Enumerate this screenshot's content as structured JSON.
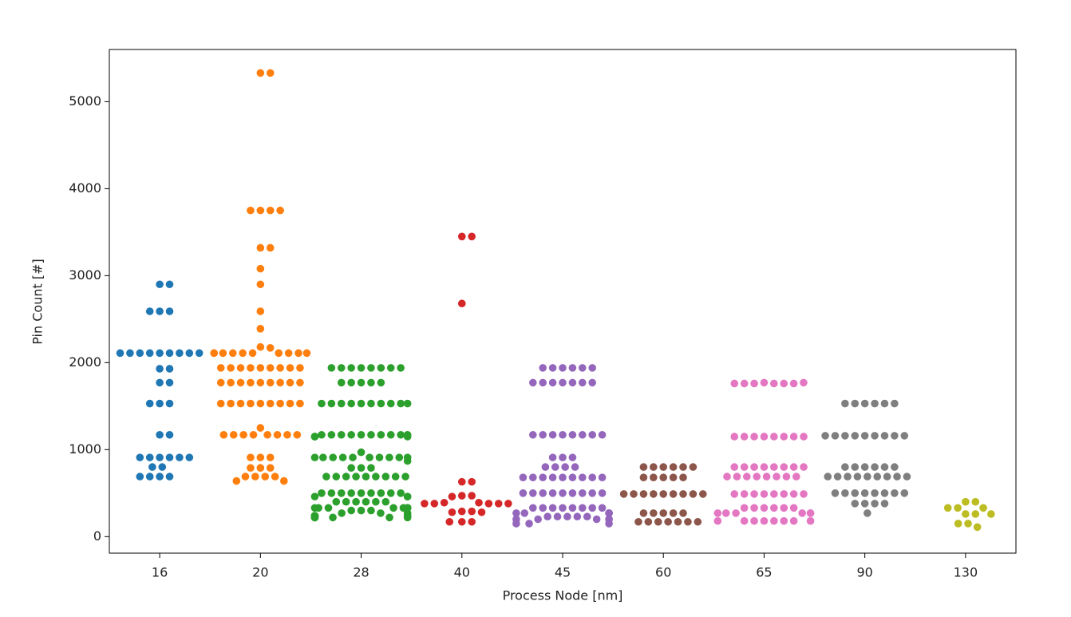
{
  "chart_data": {
    "type": "swarm",
    "x_label": "Process Node [nm]",
    "y_label": "Pin Count [#]",
    "categories": [
      "16",
      "20",
      "28",
      "40",
      "45",
      "60",
      "65",
      "90",
      "130"
    ],
    "colors": [
      "#1f77b4",
      "#ff7f0e",
      "#2ca02c",
      "#d62728",
      "#9467bd",
      "#8c564b",
      "#e377c2",
      "#7f7f7f",
      "#bcbd22"
    ],
    "values": [
      [
        2900,
        2900,
        2590,
        2590,
        2590,
        2110,
        2110,
        2110,
        2110,
        2110,
        2110,
        2110,
        2110,
        2110,
        1930,
        1930,
        1770,
        1770,
        1530,
        1530,
        1530,
        1170,
        1170,
        910,
        910,
        910,
        910,
        910,
        910,
        800,
        800,
        690,
        690,
        690,
        690
      ],
      [
        5330,
        5330,
        3750,
        3750,
        3750,
        3750,
        3320,
        3320,
        3080,
        2900,
        2590,
        2390,
        2180,
        2170,
        2110,
        2110,
        2110,
        2110,
        2110,
        2110,
        2110,
        2110,
        2110,
        2110,
        1940,
        1940,
        1940,
        1940,
        1940,
        1940,
        1940,
        1940,
        1940,
        1770,
        1770,
        1770,
        1770,
        1770,
        1770,
        1770,
        1770,
        1770,
        1530,
        1530,
        1530,
        1530,
        1530,
        1530,
        1530,
        1530,
        1530,
        1250,
        1170,
        1170,
        1170,
        1170,
        1170,
        1170,
        1170,
        1170,
        910,
        910,
        910,
        790,
        790,
        790,
        690,
        690,
        690,
        690,
        640,
        640
      ],
      [
        1940,
        1940,
        1940,
        1940,
        1940,
        1940,
        1940,
        1940,
        1770,
        1770,
        1770,
        1770,
        1770,
        1530,
        1530,
        1530,
        1530,
        1530,
        1530,
        1530,
        1530,
        1530,
        1530,
        1170,
        1170,
        1170,
        1170,
        1170,
        1170,
        1170,
        1170,
        1170,
        1170,
        1150,
        1150,
        1150,
        1150,
        970,
        910,
        910,
        910,
        910,
        910,
        910,
        910,
        910,
        910,
        910,
        870,
        790,
        790,
        790,
        690,
        690,
        690,
        690,
        690,
        690,
        690,
        690,
        690,
        500,
        500,
        500,
        500,
        500,
        500,
        500,
        500,
        500,
        460,
        460,
        460,
        400,
        400,
        400,
        400,
        400,
        400,
        330,
        330,
        330,
        330,
        330,
        330,
        330,
        330,
        330,
        300,
        300,
        300,
        270,
        270,
        270,
        240,
        240,
        240,
        240,
        220,
        220,
        220,
        220,
        220,
        220,
        220,
        220
      ],
      [
        3450,
        3450,
        2680,
        630,
        630,
        470,
        470,
        460,
        390,
        390,
        380,
        380,
        380,
        380,
        380,
        290,
        290,
        280,
        280,
        170,
        170,
        170
      ],
      [
        1940,
        1940,
        1940,
        1940,
        1940,
        1940,
        1770,
        1770,
        1770,
        1770,
        1770,
        1770,
        1770,
        1170,
        1170,
        1170,
        1170,
        1170,
        1170,
        1170,
        1170,
        910,
        910,
        910,
        800,
        800,
        800,
        800,
        680,
        680,
        680,
        680,
        680,
        680,
        680,
        680,
        680,
        500,
        500,
        500,
        500,
        500,
        500,
        500,
        500,
        500,
        330,
        330,
        330,
        330,
        330,
        330,
        330,
        330,
        270,
        270,
        270,
        270,
        270,
        270,
        230,
        230,
        230,
        230,
        230,
        200,
        200,
        200,
        200,
        200,
        150,
        150,
        150
      ],
      [
        800,
        800,
        800,
        800,
        800,
        800,
        680,
        680,
        680,
        680,
        680,
        490,
        490,
        490,
        490,
        490,
        490,
        490,
        490,
        490,
        270,
        270,
        270,
        270,
        270,
        170,
        170,
        170,
        170,
        170,
        170,
        170
      ],
      [
        1770,
        1760,
        1760,
        1760,
        1760,
        1760,
        1760,
        1770,
        1150,
        1150,
        1150,
        1150,
        1150,
        1150,
        1150,
        1150,
        800,
        800,
        800,
        800,
        800,
        800,
        800,
        800,
        690,
        690,
        690,
        690,
        690,
        690,
        690,
        690,
        490,
        490,
        490,
        490,
        490,
        490,
        490,
        490,
        330,
        330,
        330,
        330,
        330,
        330,
        270,
        270,
        270,
        270,
        270,
        270,
        180,
        180,
        180,
        180,
        180,
        180,
        180,
        180
      ],
      [
        1530,
        1530,
        1530,
        1530,
        1530,
        1530,
        1160,
        1160,
        1160,
        1160,
        1160,
        1160,
        1160,
        1160,
        1160,
        800,
        800,
        800,
        800,
        800,
        800,
        690,
        690,
        690,
        690,
        690,
        690,
        690,
        690,
        690,
        500,
        500,
        500,
        500,
        500,
        500,
        500,
        500,
        380,
        380,
        380,
        380,
        270
      ],
      [
        400,
        400,
        330,
        330,
        330,
        260,
        260,
        260,
        150,
        150,
        110
      ]
    ],
    "ylim": [
      -190,
      5600
    ],
    "yticks": [
      0,
      1000,
      2000,
      3000,
      4000,
      5000
    ]
  }
}
